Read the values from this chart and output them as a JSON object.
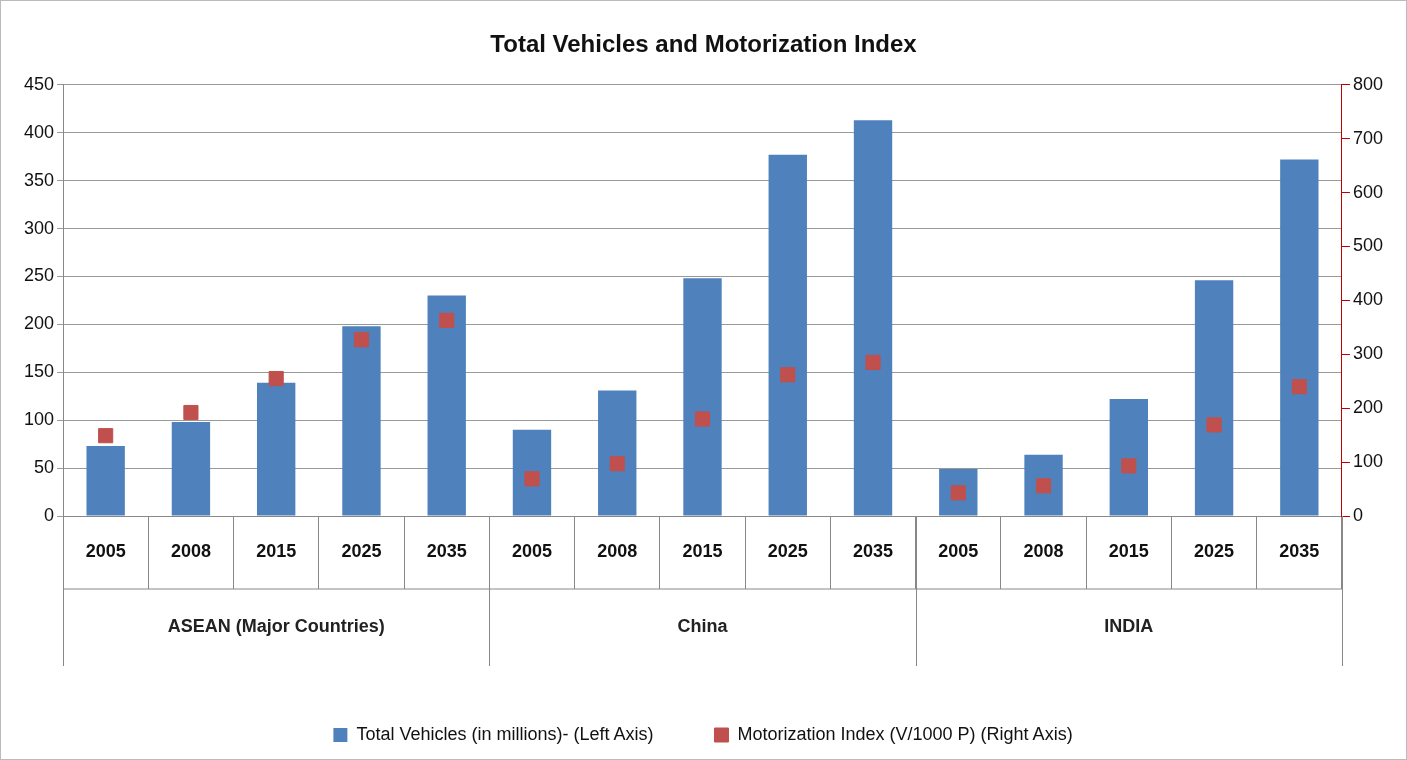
{
  "chart_data": {
    "type": "bar",
    "title": "Total Vehicles and Motorization Index",
    "categories": [
      "2005",
      "2008",
      "2015",
      "2025",
      "2035",
      "2005",
      "2008",
      "2015",
      "2025",
      "2035",
      "2005",
      "2008",
      "2015",
      "2025",
      "2035"
    ],
    "series": [
      {
        "name": "Total Vehicles (in millions)- (Left Axis)",
        "color": "#4f81bd",
        "values": [
          73,
          98,
          139,
          198,
          230,
          90,
          131,
          248,
          377,
          413,
          49,
          64,
          122,
          246,
          372
        ]
      },
      {
        "name": "Motorization Index (V/1000 P) (Right Axis)",
        "type": "scatter",
        "axis": "y2",
        "color": "#c0504d",
        "values": [
          149,
          192,
          255,
          327,
          363,
          69,
          97,
          180,
          262,
          285,
          43,
          56,
          93,
          169,
          240
        ]
      }
    ],
    "ylim": [
      0,
      450
    ],
    "yticks": [
      0,
      50,
      100,
      150,
      200,
      250,
      300,
      350,
      400,
      450
    ],
    "y2lim": [
      0,
      800
    ],
    "y2ticks": [
      0,
      100,
      200,
      300,
      400,
      500,
      600,
      700,
      800
    ],
    "annotations": [
      "ASEAN (Major Countries)",
      "China",
      "INDIA"
    ],
    "grid": "y",
    "legend": "bottom",
    "marker": "square"
  }
}
